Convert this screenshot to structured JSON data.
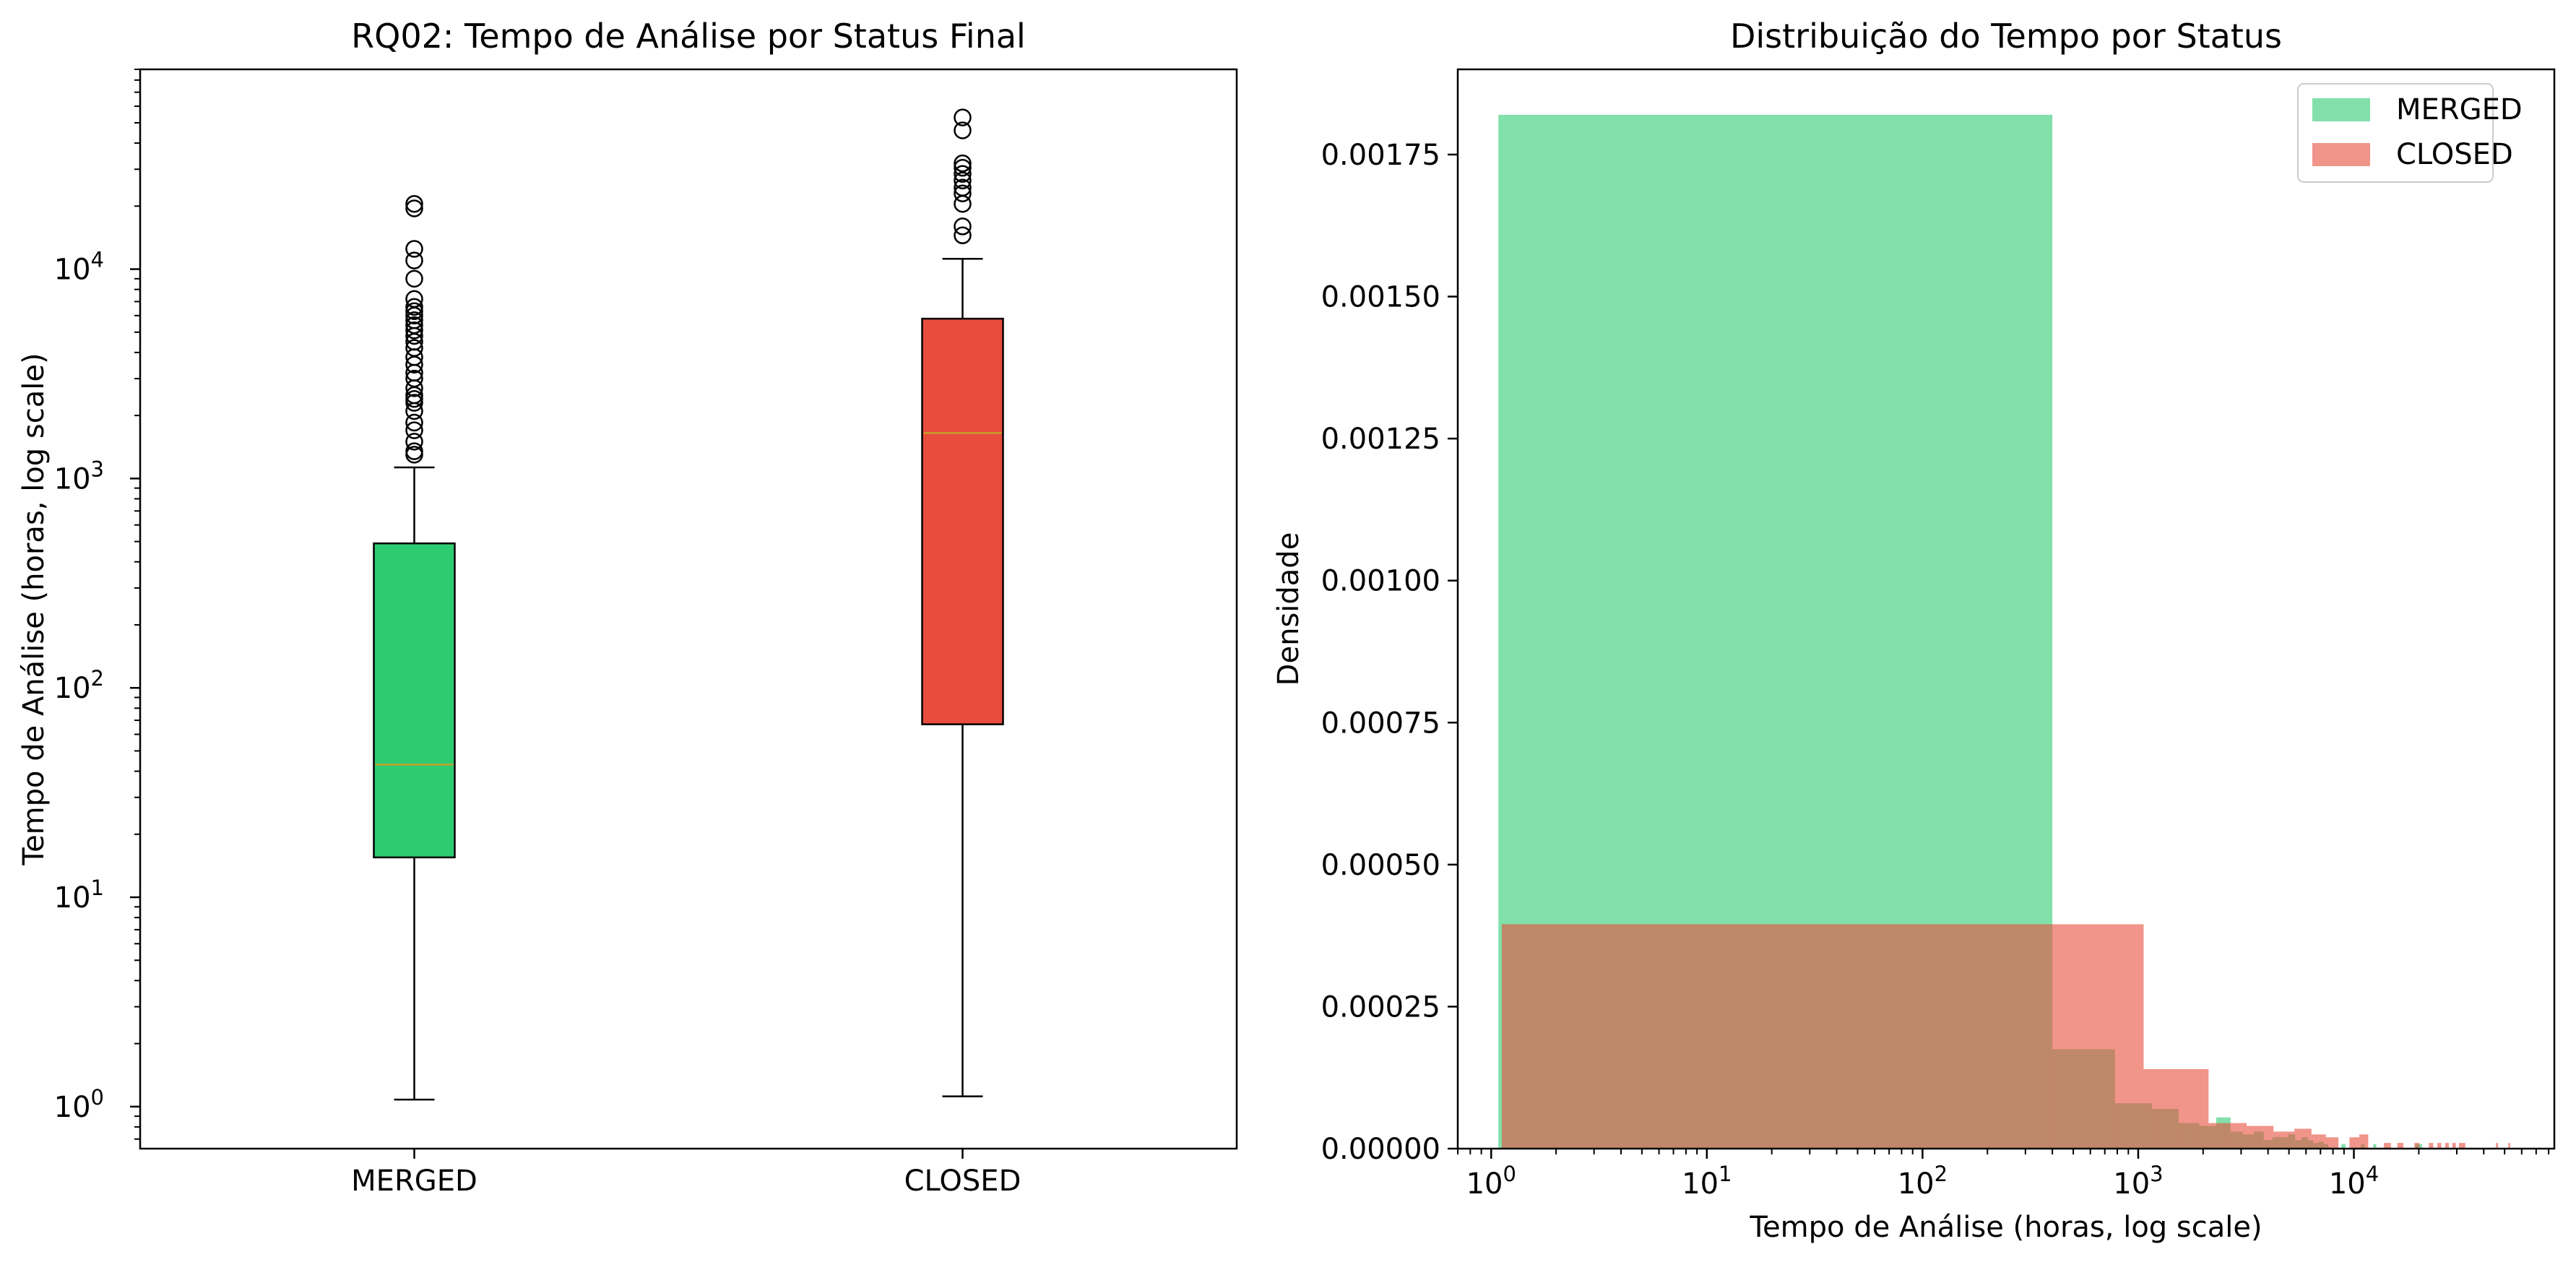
{
  "chart_data": [
    {
      "type": "box",
      "title": "RQ02: Tempo de Análise por Status Final",
      "xlabel": "",
      "ylabel": "Tempo de Análise (horas, log scale)",
      "yscale": "log",
      "ylim": [
        0.63,
        90000
      ],
      "grid": false,
      "categories": [
        "MERGED",
        "CLOSED"
      ],
      "yticks": [
        {
          "base": "10",
          "exp": "0",
          "value": 1
        },
        {
          "base": "10",
          "exp": "1",
          "value": 10
        },
        {
          "base": "10",
          "exp": "2",
          "value": 100
        },
        {
          "base": "10",
          "exp": "3",
          "value": 1000
        },
        {
          "base": "10",
          "exp": "4",
          "value": 10000
        }
      ],
      "boxes": [
        {
          "category": "MERGED",
          "color": "#2ecc71",
          "whisker_low": 1.08,
          "q1": 15.5,
          "median": 43,
          "q3": 490,
          "whisker_high": 1130,
          "outliers": [
            1300,
            1350,
            1500,
            1700,
            1850,
            2100,
            2300,
            2400,
            2500,
            2700,
            3000,
            3200,
            3500,
            3800,
            4200,
            4500,
            4800,
            5100,
            5400,
            5700,
            6000,
            6300,
            6600,
            7200,
            9000,
            11000,
            12500,
            19500,
            20500
          ]
        },
        {
          "category": "CLOSED",
          "color": "#e74c3c",
          "whisker_low": 1.12,
          "q1": 67,
          "median": 1650,
          "q3": 5800,
          "whisker_high": 11200,
          "outliers": [
            14500,
            16000,
            20500,
            23000,
            24500,
            26500,
            28500,
            30500,
            32000,
            46000,
            53000
          ]
        }
      ]
    },
    {
      "type": "histogram",
      "title": "Distribuição do Tempo por Status",
      "xlabel": "Tempo de Análise (horas, log scale)",
      "ylabel": "Densidade",
      "xscale": "log",
      "xlim": [
        0.7,
        85000
      ],
      "ylim": [
        0,
        0.0019
      ],
      "grid": false,
      "legend": "upper right",
      "xticks": [
        {
          "base": "10",
          "exp": "0",
          "value": 1
        },
        {
          "base": "10",
          "exp": "1",
          "value": 10
        },
        {
          "base": "10",
          "exp": "2",
          "value": 100
        },
        {
          "base": "10",
          "exp": "3",
          "value": 1000
        },
        {
          "base": "10",
          "exp": "4",
          "value": 10000
        }
      ],
      "yticks": [
        "0.00000",
        "0.00025",
        "0.00050",
        "0.00075",
        "0.00100",
        "0.00125",
        "0.00150",
        "0.00175"
      ],
      "series": [
        {
          "name": "MERGED",
          "color": "#2ecc71",
          "bins": [
            {
              "x0": 1.08,
              "x1": 400,
              "density": 0.00182
            },
            {
              "x0": 400,
              "x1": 780,
              "density": 0.000175
            },
            {
              "x0": 780,
              "x1": 1160,
              "density": 8e-05
            },
            {
              "x0": 1160,
              "x1": 1540,
              "density": 7e-05
            },
            {
              "x0": 1540,
              "x1": 1920,
              "density": 4.5e-05
            },
            {
              "x0": 1920,
              "x1": 2300,
              "density": 4e-05
            },
            {
              "x0": 2300,
              "x1": 2680,
              "density": 5.5e-05
            },
            {
              "x0": 2680,
              "x1": 3060,
              "density": 3e-05
            },
            {
              "x0": 3060,
              "x1": 3440,
              "density": 2.5e-05
            },
            {
              "x0": 3440,
              "x1": 3820,
              "density": 3e-05
            },
            {
              "x0": 3820,
              "x1": 4200,
              "density": 1.5e-05
            },
            {
              "x0": 4200,
              "x1": 4580,
              "density": 2e-05
            },
            {
              "x0": 4580,
              "x1": 4960,
              "density": 2e-05
            },
            {
              "x0": 4960,
              "x1": 5340,
              "density": 2.5e-05
            },
            {
              "x0": 5340,
              "x1": 5720,
              "density": 1.5e-05
            },
            {
              "x0": 5720,
              "x1": 6100,
              "density": 2e-05
            },
            {
              "x0": 6100,
              "x1": 6480,
              "density": 1.5e-05
            },
            {
              "x0": 6480,
              "x1": 6860,
              "density": 1e-05
            },
            {
              "x0": 6860,
              "x1": 7240,
              "density": 1.2e-05
            },
            {
              "x0": 7240,
              "x1": 7620,
              "density": 8e-06
            },
            {
              "x0": 8760,
              "x1": 9140,
              "density": 8e-06
            },
            {
              "x0": 10800,
              "x1": 11200,
              "density": 8e-06
            },
            {
              "x0": 12300,
              "x1": 12700,
              "density": 8e-06
            },
            {
              "x0": 19300,
              "x1": 20700,
              "density": 8e-06
            }
          ]
        },
        {
          "name": "CLOSED",
          "color": "#e74c3c",
          "bins": [
            {
              "x0": 1.12,
              "x1": 1060,
              "density": 0.000395
            },
            {
              "x0": 1060,
              "x1": 2120,
              "density": 0.00014
            },
            {
              "x0": 2120,
              "x1": 3180,
              "density": 4.5e-05
            },
            {
              "x0": 3180,
              "x1": 4240,
              "density": 4e-05
            },
            {
              "x0": 4240,
              "x1": 5300,
              "density": 3e-05
            },
            {
              "x0": 5300,
              "x1": 6360,
              "density": 3.5e-05
            },
            {
              "x0": 6360,
              "x1": 7420,
              "density": 2.5e-05
            },
            {
              "x0": 7420,
              "x1": 8480,
              "density": 2e-05
            },
            {
              "x0": 9540,
              "x1": 10600,
              "density": 2e-05
            },
            {
              "x0": 10600,
              "x1": 11660,
              "density": 2.5e-05
            },
            {
              "x0": 13780,
              "x1": 14840,
              "density": 1e-05
            },
            {
              "x0": 15900,
              "x1": 16960,
              "density": 1e-05
            },
            {
              "x0": 19080,
              "x1": 20140,
              "density": 1e-05
            },
            {
              "x0": 22260,
              "x1": 23320,
              "density": 1e-05
            },
            {
              "x0": 24380,
              "x1": 25440,
              "density": 1e-05
            },
            {
              "x0": 26500,
              "x1": 27560,
              "density": 1e-05
            },
            {
              "x0": 28620,
              "x1": 29680,
              "density": 1e-05
            },
            {
              "x0": 30740,
              "x1": 31800,
              "density": 1e-05
            },
            {
              "x0": 31800,
              "x1": 32860,
              "density": 1e-05
            },
            {
              "x0": 45580,
              "x1": 46640,
              "density": 1e-05
            },
            {
              "x0": 52000,
              "x1": 53060,
              "density": 1e-05
            }
          ]
        }
      ]
    }
  ]
}
